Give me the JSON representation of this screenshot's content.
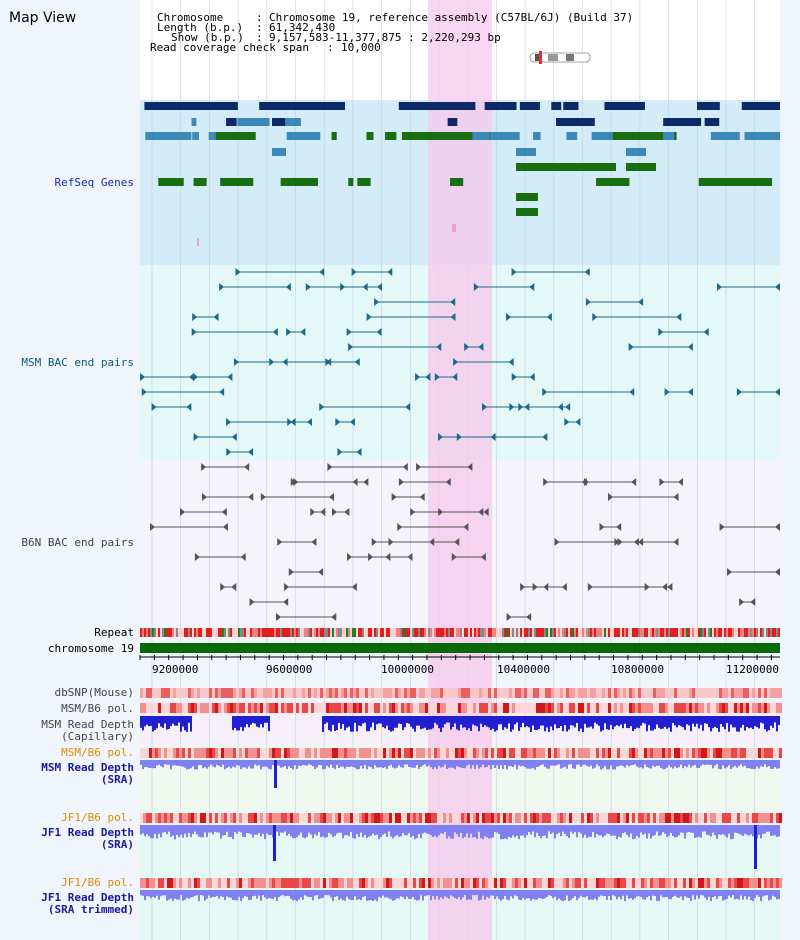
{
  "view": {
    "title": "Map View"
  },
  "info": {
    "chromosome_key": "Chromosome",
    "chromosome_val": "Chromosome 19, reference assembly (C57BL/6J) (Build 37)",
    "length_key": "Length (b.p.)",
    "length_val": "61,342,430",
    "show_key": "Show (b.p.)",
    "show_val": "9,157,583-11,377,875 : 2,220,293 bp",
    "coverage_key": "Read coverage check span",
    "coverage_val": "10,000"
  },
  "tracks": {
    "refseq": "RefSeq Genes",
    "msm_bac": "MSM BAC end pairs",
    "b6n_bac": "B6N BAC end pairs",
    "repeat": "Repeat",
    "chrom": "chromosome 19",
    "dbsnp": "dbSNP(Mouse)",
    "msm_b6_pol_1": "MSM/B6 pol.",
    "msm_read_depth_cap_1": "MSM Read Depth",
    "msm_read_depth_cap_2": "(Capillary)",
    "msm_b6_pol_2": "MSM/B6 pol.",
    "msm_read_depth_sra_1": "MSM Read Depth",
    "msm_read_depth_sra_2": "(SRA)",
    "jf1_b6_pol_1": "JF1/B6 pol.",
    "jf1_read_depth_sra_1": "JF1 Read Depth",
    "jf1_read_depth_sra_2": "(SRA)",
    "jf1_b6_pol_2": "JF1/B6 pol.",
    "jf1_read_depth_trim_1": "JF1 Read Depth",
    "jf1_read_depth_trim_2": "(SRA trimmed)"
  },
  "axis": {
    "ticks": [
      "9200000",
      "9600000",
      "10000000",
      "10400000",
      "10800000",
      "11200000"
    ]
  },
  "colors": {
    "refseq_bg": "#d3ecf8",
    "msm_bg": "#e4f8f8",
    "b6n_bg": "#f4f4fa",
    "highlight": "#f7c8ec",
    "gene_navy": "#0d2a66",
    "gene_blue": "#3c88b8",
    "gene_green": "#1a6e12",
    "bac_teal": "#1b6a8a",
    "bac_gray": "#555555",
    "chrom_green": "#0a6a0a",
    "depth_blue": "#2020d0",
    "depth_light": "#8080f0"
  }
}
